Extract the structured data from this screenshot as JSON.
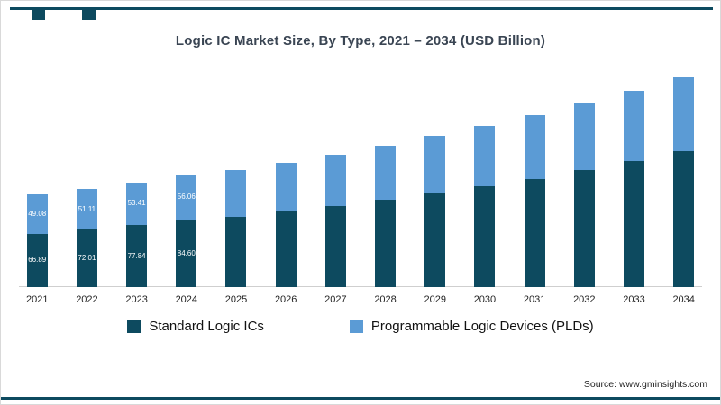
{
  "title": "Logic IC Market Size, By Type, 2021 – 2034 (USD Billion)",
  "source": "Source: www.gminsights.com",
  "colors": {
    "accent": "#0d4a5f",
    "standard_series": "#0d4a5f",
    "pld_series": "#5b9bd5",
    "baseline": "#cfcfcf",
    "title_text": "#3a4553"
  },
  "legend": [
    {
      "label": "Standard Logic ICs",
      "color": "#0d4a5f"
    },
    {
      "label": "Programmable Logic Devices (PLDs)",
      "color": "#5b9bd5"
    }
  ],
  "chart_data": {
    "type": "bar",
    "stacked": true,
    "title": "Logic IC Market Size, By Type, 2021 – 2034 (USD Billion)",
    "xlabel": "",
    "ylabel": "",
    "grid": false,
    "legend_position": "bottom",
    "categories": [
      "2021",
      "2022",
      "2023",
      "2024",
      "2025",
      "2026",
      "2027",
      "2028",
      "2029",
      "2030",
      "2031",
      "2032",
      "2033",
      "2034"
    ],
    "series": [
      {
        "name": "Standard Logic ICs",
        "color": "#0d4a5f",
        "values": [
          66.89,
          72.01,
          77.84,
          84.6,
          88.0,
          94.5,
          101.5,
          109.0,
          117.5,
          126.5,
          136.0,
          146.5,
          158.0,
          170.5
        ]
      },
      {
        "name": "Programmable Logic Devices (PLDs)",
        "color": "#5b9bd5",
        "values": [
          49.08,
          51.11,
          53.41,
          56.06,
          58.8,
          61.7,
          64.8,
          68.1,
          71.6,
          75.3,
          79.2,
          83.4,
          87.8,
          92.5
        ]
      }
    ],
    "visible_label_count": 4,
    "visible_labels": {
      "2021": [
        "66.89",
        "49.08"
      ],
      "2022": [
        "72.01",
        "51.11"
      ],
      "2023": [
        "77.84",
        "53.41"
      ],
      "2024": [
        "84.60",
        "56.06"
      ]
    }
  }
}
